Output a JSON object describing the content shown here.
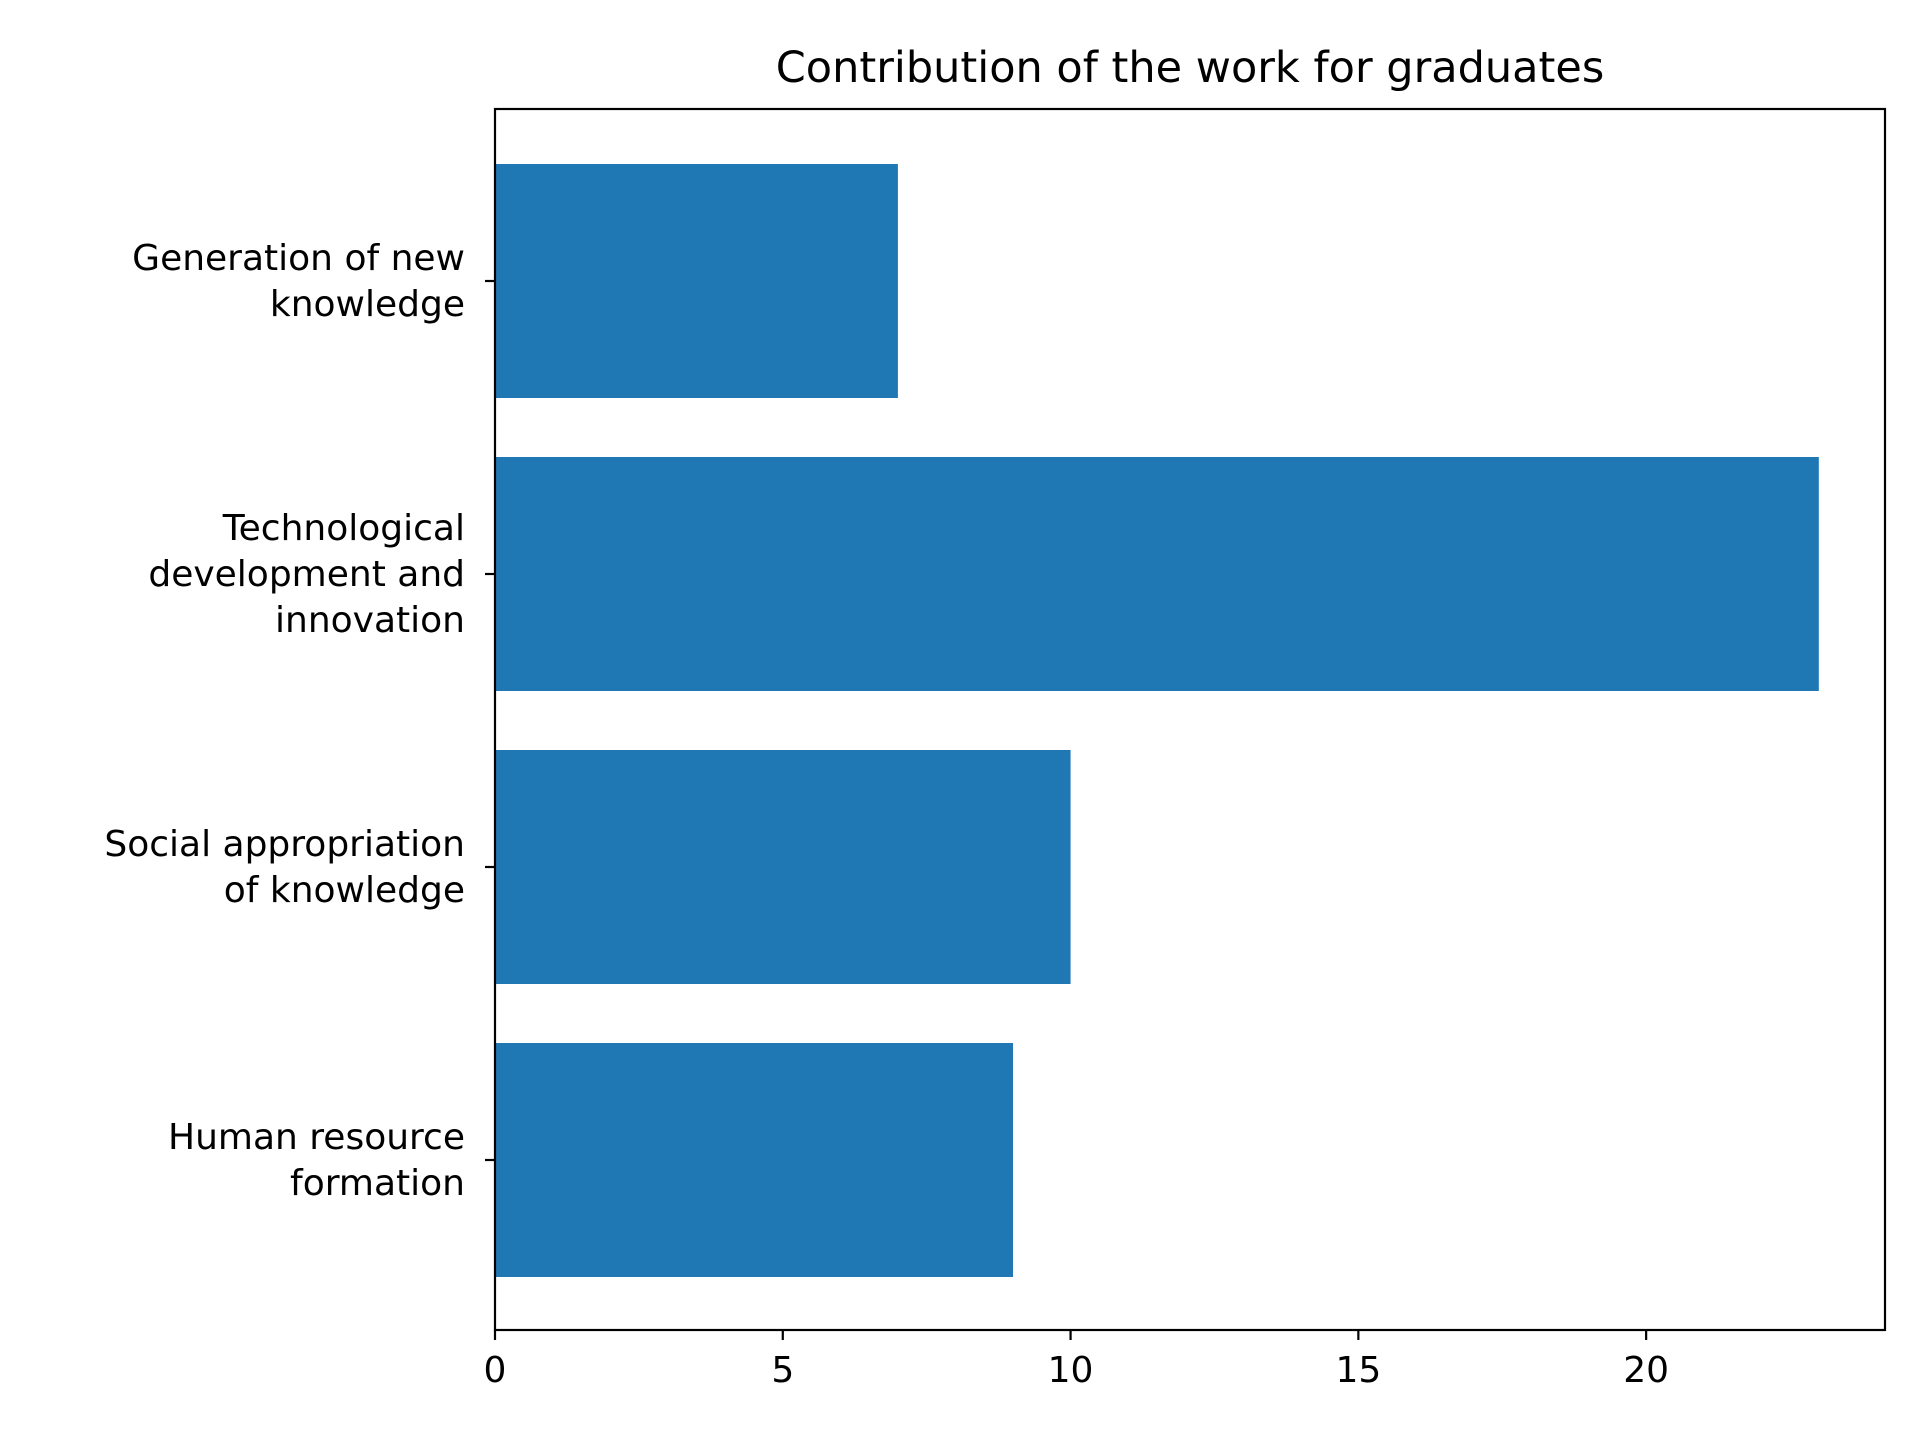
{
  "chart_data": {
    "type": "bar",
    "orientation": "horizontal",
    "title": "Contribution of the work for graduates",
    "xlabel": "",
    "ylabel": "",
    "categories": [
      [
        "Generation of new",
        "knowledge"
      ],
      [
        "Technological",
        "development and",
        "innovation"
      ],
      [
        "Social appropriation",
        "of knowledge"
      ],
      [
        "Human resource",
        "formation"
      ]
    ],
    "values": [
      7,
      23,
      10,
      9
    ],
    "xlim": [
      0,
      24.15
    ],
    "xticks": [
      0,
      5,
      10,
      15,
      20
    ],
    "bar_color": "#1f77b4",
    "grid": false,
    "legend": "none"
  }
}
